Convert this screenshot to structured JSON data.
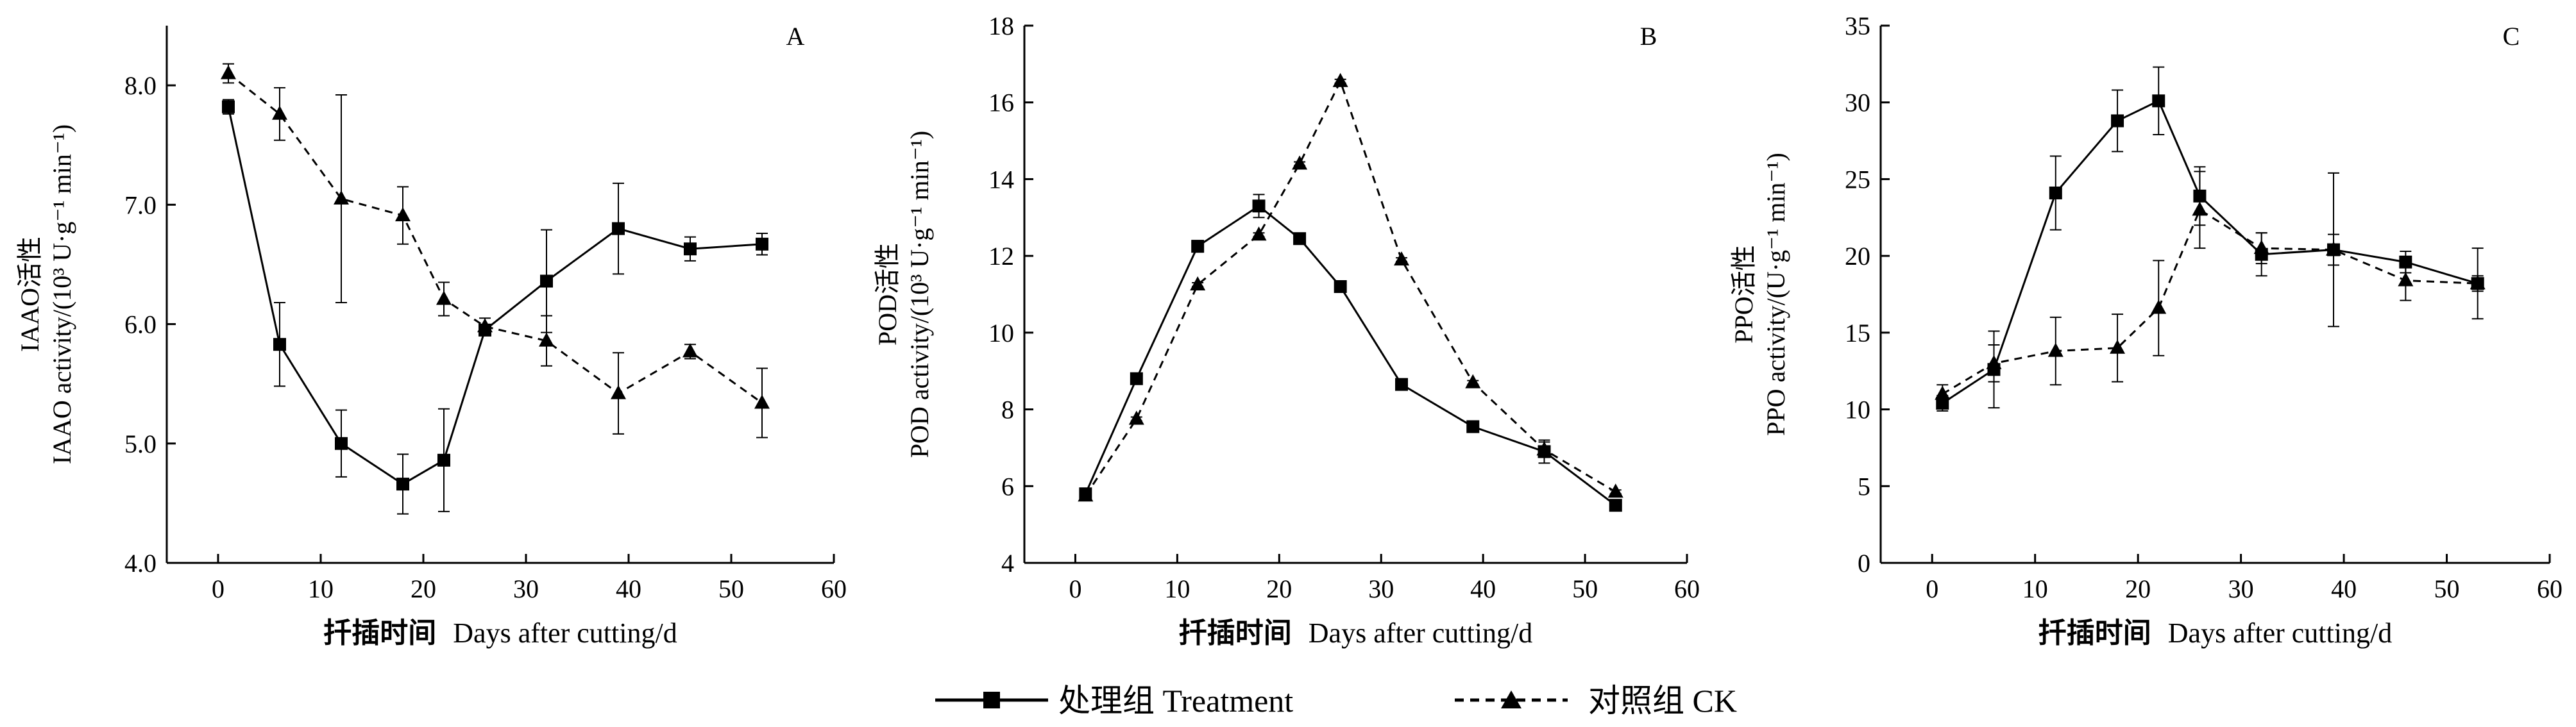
{
  "chart_data": [
    {
      "type": "line",
      "panel": "A",
      "ylabel_cn": "IAAO活性",
      "ylabel_en": "IAAO activity/(10³ U·g⁻¹ min⁻¹)",
      "xlabel_cn": "扦插时间",
      "xlabel_en": "Days after cutting/d",
      "xlim": [
        -5,
        60
      ],
      "ylim": [
        4.0,
        8.5
      ],
      "xticks": [
        0,
        10,
        20,
        30,
        40,
        50,
        60
      ],
      "xtick_labels": [
        "0",
        "10",
        "20",
        "30",
        "40",
        "50",
        "60"
      ],
      "yticks": [
        4.0,
        5.0,
        6.0,
        7.0,
        8.0
      ],
      "ytick_labels": [
        "4.0",
        "5.0",
        "6.0",
        "7.0",
        "8.0"
      ],
      "series": [
        {
          "name": "处理组  Treatment",
          "marker": "square",
          "line": "solid",
          "x": [
            1,
            6,
            12,
            18,
            22,
            26,
            32,
            39,
            46,
            53
          ],
          "y": [
            7.82,
            5.83,
            5.0,
            4.66,
            4.86,
            5.95,
            6.36,
            6.8,
            6.63,
            6.67
          ],
          "err": [
            0.06,
            0.35,
            0.28,
            0.25,
            0.43,
            0.04,
            0.43,
            0.38,
            0.1,
            0.09
          ]
        },
        {
          "name": "对照组  CK",
          "marker": "triangle",
          "line": "dashed",
          "x": [
            1,
            6,
            12,
            18,
            22,
            26,
            32,
            39,
            46,
            53
          ],
          "y": [
            8.1,
            7.76,
            7.05,
            6.91,
            6.21,
            5.98,
            5.86,
            5.42,
            5.77,
            5.34
          ],
          "err": [
            0.08,
            0.22,
            0.87,
            0.24,
            0.14,
            0.07,
            0.21,
            0.34,
            0.06,
            0.29
          ]
        }
      ]
    },
    {
      "type": "line",
      "panel": "B",
      "ylabel_cn": "POD活性",
      "ylabel_en": "POD activity/(10³ U·g⁻¹ min⁻¹)",
      "xlabel_cn": "扦插时间",
      "xlabel_en": "Days after cutting/d",
      "xlim": [
        -5,
        60
      ],
      "ylim": [
        4,
        18
      ],
      "xticks": [
        0,
        10,
        20,
        30,
        40,
        50,
        60
      ],
      "xtick_labels": [
        "0",
        "10",
        "20",
        "30",
        "40",
        "50",
        "60"
      ],
      "yticks": [
        4,
        6,
        8,
        10,
        12,
        14,
        16,
        18
      ],
      "ytick_labels": [
        "4",
        "6",
        "8",
        "10",
        "12",
        "14",
        "16",
        "18"
      ],
      "series": [
        {
          "name": "处理组  Treatment",
          "marker": "square",
          "line": "solid",
          "x": [
            1,
            6,
            12,
            18,
            22,
            26,
            32,
            39,
            46,
            53
          ],
          "y": [
            5.8,
            8.8,
            12.25,
            13.3,
            12.45,
            11.2,
            8.65,
            7.55,
            6.9,
            5.5
          ],
          "err": [
            0.05,
            0.05,
            0.15,
            0.3,
            0.08,
            0.15,
            0.05,
            0.12,
            0.3,
            0.05
          ]
        },
        {
          "name": "对照组  CK",
          "marker": "triangle",
          "line": "dashed",
          "x": [
            1,
            6,
            12,
            18,
            22,
            26,
            32,
            39,
            46,
            53
          ],
          "y": [
            5.75,
            7.75,
            11.25,
            12.55,
            14.4,
            16.55,
            11.9,
            8.7,
            6.95,
            5.85
          ],
          "err": [
            0.05,
            0.05,
            0.05,
            0.05,
            0.05,
            0.05,
            0.05,
            0.05,
            0.2,
            0.05
          ]
        }
      ]
    },
    {
      "type": "line",
      "panel": "C",
      "ylabel_cn": "PPO活性",
      "ylabel_en": "PPO activity/(U·g⁻¹ min⁻¹)",
      "xlabel_cn": "扦插时间",
      "xlabel_en": "Days after cutting/d",
      "xlim": [
        -5,
        60
      ],
      "ylim": [
        0,
        35
      ],
      "xticks": [
        0,
        10,
        20,
        30,
        40,
        50,
        60
      ],
      "xtick_labels": [
        "0",
        "10",
        "20",
        "30",
        "40",
        "50",
        "60"
      ],
      "yticks": [
        0,
        5,
        10,
        15,
        20,
        25,
        30,
        35
      ],
      "ytick_labels": [
        "0",
        "5",
        "10",
        "15",
        "20",
        "25",
        "30",
        "35"
      ],
      "series": [
        {
          "name": "处理组  Treatment",
          "marker": "square",
          "line": "solid",
          "x": [
            1,
            6,
            12,
            18,
            22,
            26,
            32,
            39,
            46,
            53
          ],
          "y": [
            10.4,
            12.6,
            24.1,
            28.8,
            30.1,
            23.9,
            20.1,
            20.4,
            19.6,
            18.2
          ],
          "err": [
            0.5,
            2.5,
            2.4,
            2.0,
            2.2,
            1.9,
            1.4,
            5.0,
            0.7,
            2.3
          ]
        },
        {
          "name": "对照组  CK",
          "marker": "triangle",
          "line": "dashed",
          "x": [
            1,
            6,
            12,
            18,
            22,
            26,
            32,
            39,
            46,
            53
          ],
          "y": [
            11.0,
            13.0,
            13.8,
            14.0,
            16.6,
            23.0,
            20.5,
            20.4,
            18.4,
            18.2
          ],
          "err": [
            0.6,
            1.2,
            2.2,
            2.2,
            3.1,
            2.5,
            1.0,
            1.0,
            1.3,
            0.5
          ]
        }
      ]
    }
  ],
  "legend": [
    {
      "label": "处理组  Treatment",
      "marker": "square",
      "line": "solid"
    },
    {
      "label": "对照组  CK",
      "marker": "triangle",
      "line": "dashed"
    }
  ]
}
